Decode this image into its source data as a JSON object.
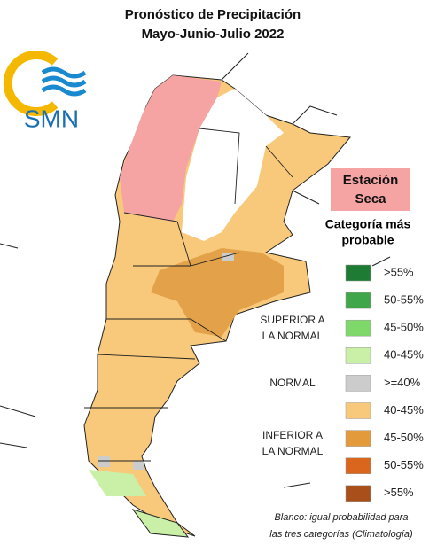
{
  "header": {
    "title": "Pronóstico de Precipitación",
    "subtitle": "Mayo-Junio-Julio 2022"
  },
  "logo": {
    "text": "SMN"
  },
  "badge": {
    "line1": "Estación",
    "line2": "Seca"
  },
  "legend": {
    "title1": "Categoría más",
    "title2": "probable",
    "items": [
      {
        "label": ">55%",
        "color": "#1e7b34"
      },
      {
        "label": "50-55%",
        "color": "#3fa64a"
      },
      {
        "label": "45-50%",
        "color": "#7fd86a"
      },
      {
        "label": "40-45%",
        "color": "#c9f0a6"
      },
      {
        "label": ">=40%",
        "color": "#cccccc"
      },
      {
        "label": "40-45%",
        "color": "#f8c97a"
      },
      {
        "label": "45-50%",
        "color": "#e39a3a"
      },
      {
        "label": "50-55%",
        "color": "#d9661c"
      },
      {
        "label": ">55%",
        "color": "#a9501a"
      }
    ],
    "groups": [
      {
        "line1": "SUPERIOR A",
        "line2": "LA NORMAL"
      },
      {
        "line1": "NORMAL"
      },
      {
        "line1": "INFERIOR A",
        "line2": "LA NORMAL"
      }
    ]
  },
  "footnote": {
    "line1": "Blanco: igual probabilidad para",
    "line2": "las tres categorías (Climatología)"
  }
}
